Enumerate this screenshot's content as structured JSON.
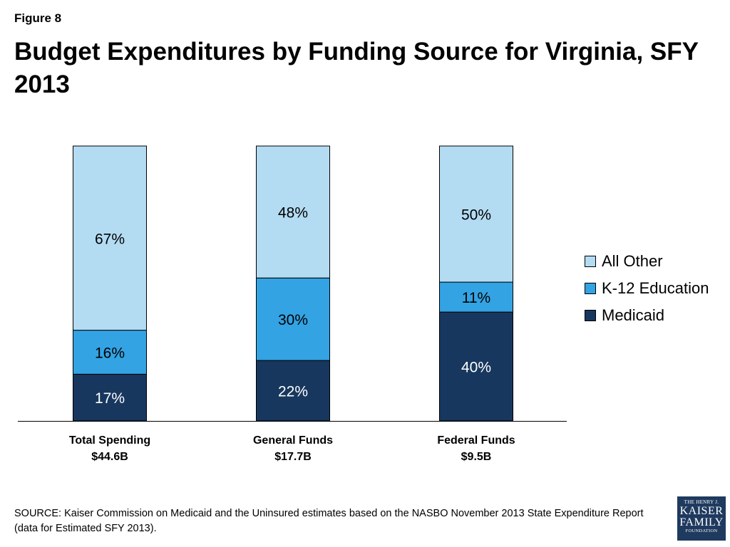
{
  "figure_label": "Figure 8",
  "title": "Budget Expenditures by Funding Source for Virginia, SFY 2013",
  "source": "SOURCE: Kaiser Commission on Medicaid and the Uninsured estimates based on the NASBO November 2013 State Expenditure Report (data for Estimated SFY 2013).",
  "logo": {
    "line1": "THE HENRY J.",
    "line2": "KAISER",
    "line3": "FAMILY",
    "line4": "FOUNDATION"
  },
  "chart_data": {
    "type": "bar",
    "stacked": true,
    "percent_stacked": true,
    "categories": [
      [
        "Total Spending",
        "$44.6B"
      ],
      [
        "General Funds",
        "$17.7B"
      ],
      [
        "Federal Funds",
        "$9.5B"
      ]
    ],
    "series": [
      {
        "name": "Medicaid",
        "values": [
          17,
          22,
          40
        ],
        "color": "#17375e",
        "label_color": "#ffffff"
      },
      {
        "name": "K-12 Education",
        "values": [
          16,
          30,
          11
        ],
        "color": "#33a3e3",
        "label_color": "#000000"
      },
      {
        "name": "All Other",
        "values": [
          67,
          48,
          50
        ],
        "color": "#b3dcf3",
        "label_color": "#000000"
      }
    ],
    "value_suffix": "%",
    "legend_position": "right",
    "grid": false
  }
}
